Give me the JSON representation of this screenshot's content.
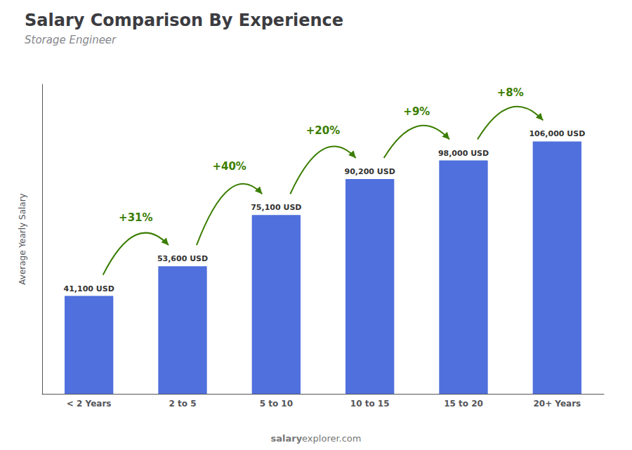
{
  "chart_data": {
    "type": "bar",
    "title": "Salary Comparison By Experience",
    "subtitle": "Storage Engineer",
    "ylabel": "Average Yearly Salary",
    "categories": [
      "< 2 Years",
      "2 to 5",
      "5 to 10",
      "10 to 15",
      "15 to 20",
      "20+ Years"
    ],
    "values": [
      41100,
      53600,
      75100,
      90200,
      98000,
      106000
    ],
    "value_labels": [
      "41,100 USD",
      "53,600 USD",
      "75,100 USD",
      "90,200 USD",
      "98,000 USD",
      "106,000 USD"
    ],
    "data_labels": true,
    "annotations": [
      {
        "text": "+31%",
        "from": "< 2 Years",
        "to": "2 to 5"
      },
      {
        "text": "+40%",
        "from": "2 to 5",
        "to": "5 to 10"
      },
      {
        "text": "+20%",
        "from": "5 to 10",
        "to": "10 to 15"
      },
      {
        "text": "+9%",
        "from": "10 to 15",
        "to": "15 to 20"
      },
      {
        "text": "+8%",
        "from": "15 to 20",
        "to": "20+ Years"
      }
    ],
    "watermark": [
      "salary",
      "explorer.com"
    ],
    "ylim": [
      0,
      130000
    ],
    "grid": false,
    "tick_labels": "x"
  }
}
